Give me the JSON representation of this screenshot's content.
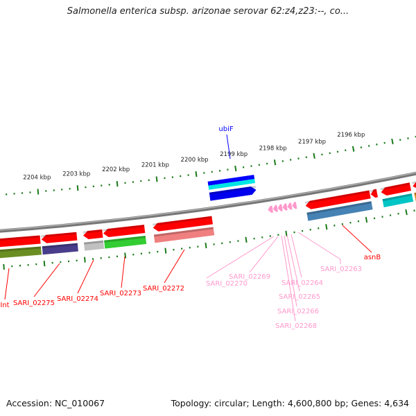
{
  "title": "Salmonella enterica subsp. arizonae serovar 62:z4,z23:--, co...",
  "footer": {
    "accession": "Accession: NC_010067",
    "topology": "Topology: circular; Length: 4,600,800 bp; Genes: 4,634"
  },
  "colors": {
    "tick": "#1a7a1a",
    "backbone": "#888888",
    "label_red": "#ff0000",
    "label_pink": "#ff99cc",
    "label_blue": "#0000ff"
  },
  "scale": {
    "major_ticks_kbp": [
      2196,
      2197,
      2198,
      2199,
      2200,
      2201,
      2202,
      2203,
      2204
    ],
    "tick_labels": [
      "2196 kbp",
      "2197 kbp",
      "2198 kbp",
      "2199 kbp",
      "2200 kbp",
      "2201 kbp",
      "2202 kbp",
      "2203 kbp",
      "2204 kbp"
    ],
    "minor_step_kbp": 0.2
  },
  "genes": [
    {
      "start": 2204.05,
      "end": 2205.2,
      "strand": -1,
      "color": "#ff0000",
      "box": [
        "#6b8e23"
      ],
      "arrow": false
    },
    {
      "start": 2203.14,
      "end": 2204.02,
      "strand": -1,
      "color": "#ff0000",
      "box": [
        "#483d8b"
      ],
      "arrow": true
    },
    {
      "start": 2202.5,
      "end": 2202.98,
      "strand": -1,
      "color": "#ff0000",
      "box": [
        "#c0c0c0"
      ],
      "arrow": true
    },
    {
      "start": 2201.45,
      "end": 2202.48,
      "strand": -1,
      "color": "#ff0000",
      "box": [
        "#32cd32"
      ],
      "arrow": true
    },
    {
      "start": 2199.76,
      "end": 2201.24,
      "strand": -1,
      "color": "#ff0000",
      "box": [
        "#f08080"
      ],
      "arrow": true
    },
    {
      "start": 2198.57,
      "end": 2199.74,
      "strand": 1,
      "color": "#0000ee",
      "box": [
        "#0000ff",
        "#00e5e5"
      ],
      "arrow": true
    },
    {
      "start": 2198.24,
      "end": 2198.36,
      "strand": -1,
      "color": "#ff99cc",
      "box": [],
      "arrow": true
    },
    {
      "start": 2198.12,
      "end": 2198.23,
      "strand": -1,
      "color": "#ff99cc",
      "box": [],
      "arrow": true
    },
    {
      "start": 2198.0,
      "end": 2198.11,
      "strand": -1,
      "color": "#ff99cc",
      "box": [],
      "arrow": true
    },
    {
      "start": 2197.88,
      "end": 2197.99,
      "strand": -1,
      "color": "#ff99cc",
      "box": [],
      "arrow": true
    },
    {
      "start": 2197.76,
      "end": 2197.87,
      "strand": -1,
      "color": "#ff99cc",
      "box": [],
      "arrow": true
    },
    {
      "start": 2197.64,
      "end": 2197.75,
      "strand": -1,
      "color": "#ff99cc",
      "box": [],
      "arrow": true
    },
    {
      "start": 2195.8,
      "end": 2197.42,
      "strand": -1,
      "color": "#ff0000",
      "box": [
        "#4682b4"
      ],
      "arrow": true
    },
    {
      "start": 2195.62,
      "end": 2195.78,
      "strand": -1,
      "color": "#ff0000",
      "box": [],
      "arrow": true
    },
    {
      "start": 2194.78,
      "end": 2195.52,
      "strand": -1,
      "color": "#ff0000",
      "box": [
        "#00c5c5"
      ],
      "arrow": true
    },
    {
      "start": 2194.3,
      "end": 2194.72,
      "strand": -1,
      "color": "#ff0000",
      "box": [
        "#e08a1e"
      ],
      "arrow": true
    }
  ],
  "labels": [
    {
      "text": "ubiF",
      "color": "#0000ff"
    },
    {
      "text": "Int",
      "color": "#ff0000"
    },
    {
      "text": "SARI_02275",
      "color": "#ff0000"
    },
    {
      "text": "SARI_02274",
      "color": "#ff0000"
    },
    {
      "text": "SARI_02273",
      "color": "#ff0000"
    },
    {
      "text": "SARI_02272",
      "color": "#ff0000"
    },
    {
      "text": "asnB",
      "color": "#ff0000"
    },
    {
      "text": "SARI_02270",
      "color": "#ff99cc"
    },
    {
      "text": "SARI_02269",
      "color": "#ff99cc"
    },
    {
      "text": "SARI_02264",
      "color": "#ff99cc"
    },
    {
      "text": "SARI_02265",
      "color": "#ff99cc"
    },
    {
      "text": "SARI_02266",
      "color": "#ff99cc"
    },
    {
      "text": "SARI_02268",
      "color": "#ff99cc"
    },
    {
      "text": "SARI_02263",
      "color": "#ff99cc"
    }
  ]
}
